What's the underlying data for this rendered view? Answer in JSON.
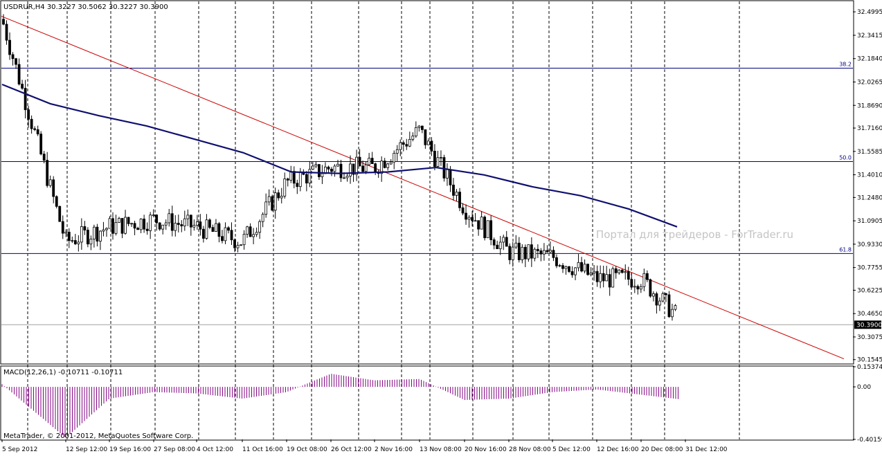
{
  "chart_data": [
    {
      "type": "candlestick",
      "symbol_header": "USDRUR,H4  30.3227 30.5062 30.3227 30.3900",
      "series": [
        {
          "name": "close_approx",
          "x": [
            "5 Sep 2012",
            "12 Sep 12:00",
            "19 Sep 16:00",
            "27 Sep 08:00",
            "4 Oct 12:00",
            "11 Oct 16:00",
            "19 Oct 08:00",
            "26 Oct 12:00",
            "2 Nov 16:00",
            "13 Nov 08:00",
            "20 Nov 16:00",
            "28 Nov 08:00",
            "5 Dec 12:00",
            "12 Dec 16:00",
            "20 Dec 08:00",
            "31 Dec 12:00"
          ],
          "values": [
            32.45,
            30.95,
            31.05,
            31.1,
            31.05,
            30.95,
            31.35,
            31.45,
            31.45,
            31.7,
            31.18,
            30.88,
            30.85,
            30.7,
            30.7,
            30.39
          ]
        }
      ],
      "moving_average": {
        "x": [
          "5 Sep 2012",
          "12 Sep 12:00",
          "19 Sep 16:00",
          "27 Sep 08:00",
          "4 Oct 12:00",
          "11 Oct 16:00",
          "19 Oct 08:00",
          "26 Oct 12:00",
          "2 Nov 16:00",
          "13 Nov 08:00",
          "20 Nov 16:00",
          "28 Nov 08:00",
          "5 Dec 12:00",
          "12 Dec 16:00",
          "20 Dec 08:00"
        ],
        "values": [
          32.01,
          31.88,
          31.8,
          31.73,
          31.64,
          31.55,
          31.42,
          31.41,
          31.42,
          31.45,
          31.4,
          31.32,
          31.26,
          31.17,
          31.05
        ]
      },
      "current_price": "30.3900",
      "yticks": [
        "32.4995",
        "32.3415",
        "32.1840",
        "32.0265",
        "31.8690",
        "31.7160",
        "31.5585",
        "31.4010",
        "31.2480",
        "31.0905",
        "30.9330",
        "30.7755",
        "30.6225",
        "30.4650",
        "30.3075",
        "30.1545"
      ],
      "ylim": [
        30.13,
        32.57
      ],
      "fib_levels": [
        {
          "label": "38.2",
          "value": 32.12
        },
        {
          "label": "50.0",
          "value": 31.49
        },
        {
          "label": "61.8",
          "value": 30.87
        }
      ],
      "trendline": {
        "from": {
          "x": "5 Sep 2012",
          "y": 32.47
        },
        "to_price": 30.16
      },
      "watermark": "Портал для трейдеров - ForTrader.ru",
      "grid": "vertical dashed",
      "colors": {
        "candle": "#000000",
        "ma": "#101070",
        "fib": "#000080",
        "trend": "#cc0000",
        "macd": "#800080"
      }
    },
    {
      "type": "bar",
      "label": "MACD(12,26,1) -0.10711 -0.10711",
      "yticks": [
        "0.15374",
        "0.00",
        "-0.40159"
      ],
      "ylim": [
        -0.40159,
        0.15374
      ],
      "x": [
        "5 Sep 2012",
        "12 Sep 12:00",
        "19 Sep 16:00",
        "27 Sep 08:00",
        "4 Oct 12:00",
        "11 Oct 16:00",
        "19 Oct 08:00",
        "26 Oct 12:00",
        "2 Nov 16:00",
        "13 Nov 08:00",
        "20 Nov 16:00",
        "28 Nov 08:00",
        "5 Dec 12:00",
        "12 Dec 16:00",
        "20 Dec 08:00",
        "31 Dec 12:00"
      ],
      "values": [
        0.02,
        -0.39,
        -0.09,
        -0.04,
        -0.05,
        -0.09,
        -0.04,
        0.1,
        0.05,
        0.06,
        -0.1,
        -0.09,
        -0.04,
        -0.02,
        -0.06,
        -0.1
      ]
    }
  ],
  "footer": {
    "copyright": "MetaTrader, © 2001-2012, MetaQuotes Software Corp."
  }
}
